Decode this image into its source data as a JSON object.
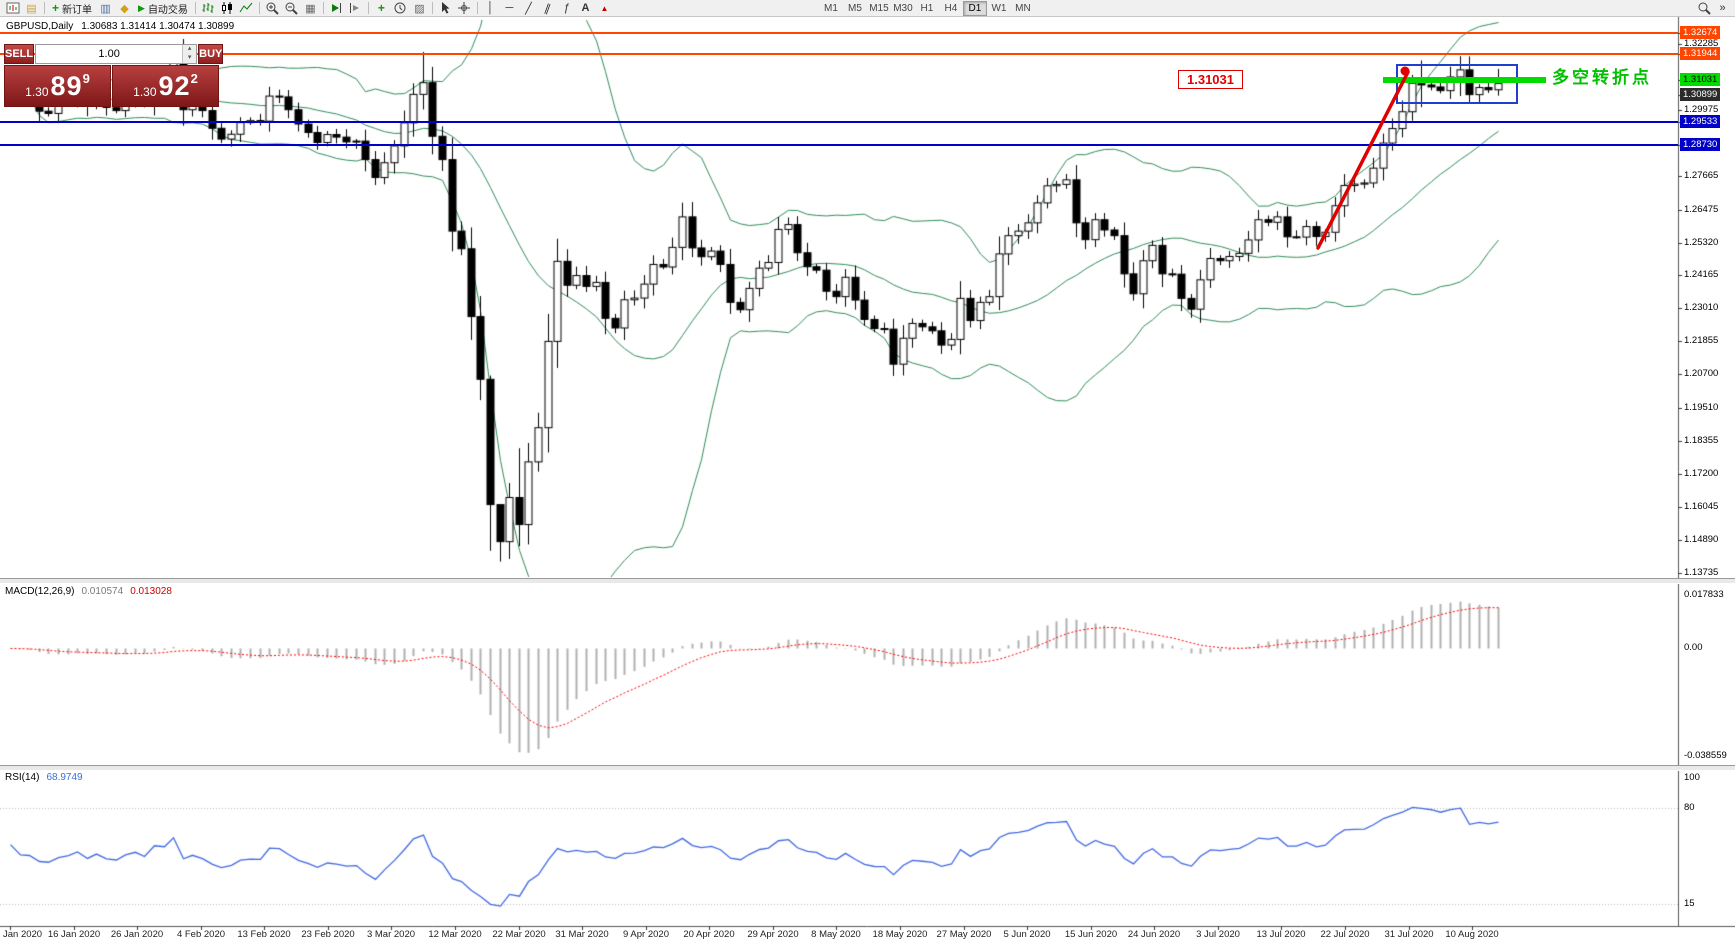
{
  "chart_title": {
    "symbol_period": "GBPUSD,Daily",
    "ohlc": "1.30683 1.31414 1.30474 1.30899"
  },
  "toolbar": {
    "new_order_label": "新订单",
    "autotrading_label": "自动交易",
    "timeframes": [
      "M1",
      "M5",
      "M15",
      "M30",
      "H1",
      "H4",
      "D1",
      "W1",
      "MN"
    ],
    "active_timeframe": "D1",
    "panels_glyph": "»"
  },
  "one_click": {
    "sell_label": "SELL",
    "buy_label": "BUY",
    "volume": "1.00",
    "sell_price_prefix": "1.30",
    "sell_price_big": "89",
    "sell_price_sup": "9",
    "buy_price_prefix": "1.30",
    "buy_price_big": "92",
    "buy_price_sup": "2"
  },
  "annotations": {
    "price_callout": "1.31031",
    "turning_point_label": "多空转折点"
  },
  "price_axis": {
    "plain": [
      "1.32285",
      "1.29975",
      "1.27665",
      "1.26475",
      "1.25320",
      "1.24165",
      "1.23010",
      "1.21855",
      "1.20700",
      "1.19510",
      "1.18355",
      "1.17200",
      "1.16045",
      "1.14890",
      "1.13735"
    ],
    "marked": [
      {
        "label": "1.32674",
        "type": "orange"
      },
      {
        "label": "1.31944",
        "type": "orange"
      },
      {
        "label": "1.31031",
        "type": "green"
      },
      {
        "label": "1.30899",
        "type": "bid"
      },
      {
        "label": "1.29533",
        "type": "blue"
      },
      {
        "label": "1.28730",
        "type": "blue"
      }
    ]
  },
  "macd": {
    "title": "MACD(12,26,9)",
    "main_value": "0.010574",
    "signal_value": "0.013028",
    "axis_labels": [
      "0.017833",
      "0.00",
      "-0.038559"
    ]
  },
  "rsi": {
    "title": "RSI(14)",
    "value": "68.9749",
    "axis_labels": [
      "100",
      "80",
      "15"
    ]
  },
  "date_axis": [
    "Jan 2020",
    "16 Jan 2020",
    "26 Jan 2020",
    "4 Feb 2020",
    "13 Feb 2020",
    "23 Feb 2020",
    "3 Mar 2020",
    "12 Mar 2020",
    "22 Mar 2020",
    "31 Mar 2020",
    "9 Apr 2020",
    "20 Apr 2020",
    "29 Apr 2020",
    "8 May 2020",
    "18 May 2020",
    "27 May 2020",
    "5 Jun 2020",
    "15 Jun 2020",
    "24 Jun 2020",
    "3 Jul 2020",
    "13 Jul 2020",
    "22 Jul 2020",
    "31 Jul 2020",
    "10 Aug 2020"
  ],
  "chart_data": {
    "type": "candlestick",
    "symbol": "GBPUSD",
    "period": "Daily",
    "visible_price_range": [
      1.1358,
      1.3313
    ],
    "closes": [
      1.3097,
      1.3065,
      1.3059,
      1.2993,
      1.2985,
      1.3023,
      1.304,
      1.3072,
      1.3013,
      1.3049,
      1.3006,
      1.2995,
      1.3033,
      1.3053,
      1.302,
      1.3105,
      1.3098,
      1.318,
      1.2998,
      1.303,
      1.2995,
      1.2933,
      1.2895,
      1.2912,
      1.2953,
      1.296,
      1.2958,
      1.3046,
      1.3043,
      1.2998,
      1.2948,
      1.2918,
      1.2883,
      1.2911,
      1.2902,
      1.2885,
      1.2888,
      1.2823,
      1.276,
      1.2812,
      1.2871,
      1.2952,
      1.3052,
      1.3093,
      1.2905,
      1.2823,
      1.2572,
      1.251,
      1.2272,
      1.2052,
      1.1612,
      1.1482,
      1.1637,
      1.1542,
      1.1762,
      1.1882,
      1.2185,
      1.2466,
      1.2382,
      1.2416,
      1.2378,
      1.2392,
      1.2266,
      1.2232,
      1.2331,
      1.2337,
      1.2386,
      1.2455,
      1.2446,
      1.2515,
      1.2622,
      1.2513,
      1.2482,
      1.2502,
      1.2455,
      1.2322,
      1.2296,
      1.2371,
      1.2442,
      1.2462,
      1.2578,
      1.2595,
      1.2496,
      1.2447,
      1.2435,
      1.2361,
      1.2342,
      1.241,
      1.233,
      1.2262,
      1.223,
      1.2228,
      1.2105,
      1.2196,
      1.2248,
      1.2236,
      1.2222,
      1.2172,
      1.2192,
      1.2336,
      1.2258,
      1.2322,
      1.2342,
      1.2492,
      1.2556,
      1.2572,
      1.2601,
      1.2671,
      1.2731,
      1.2736,
      1.2752,
      1.2601,
      1.2542,
      1.2612,
      1.2576,
      1.2556,
      1.2422,
      1.2352,
      1.2468,
      1.2522,
      1.2422,
      1.2421,
      1.2336,
      1.2298,
      1.2401,
      1.2476,
      1.2468,
      1.2483,
      1.2494,
      1.2541,
      1.2612,
      1.2603,
      1.2622,
      1.2552,
      1.2551,
      1.2588,
      1.2553,
      1.2568,
      1.2661,
      1.2732,
      1.2737,
      1.2741,
      1.2793,
      1.2881,
      1.2932,
      1.2991,
      1.3091,
      1.3085,
      1.3078,
      1.3065,
      1.3113,
      1.3138,
      1.3051,
      1.3076,
      1.3068,
      1.309
    ],
    "wick_overrides": {
      "43": [
        1.3201,
        1.2999
      ],
      "50": [
        1.2065,
        1.145
      ],
      "51": [
        1.1588,
        1.1412
      ],
      "53": [
        1.181,
        1.1466
      ],
      "147": [
        1.3171,
        1.3007
      ],
      "151": [
        1.3186,
        1.3046
      ],
      "155": [
        1.31414,
        1.30474
      ]
    },
    "overlays": {
      "bollinger_bands": {
        "period": 20,
        "deviation": 2
      },
      "horizontal_lines": [
        {
          "price": 1.32674,
          "color": "orange"
        },
        {
          "price": 1.31944,
          "color": "orange"
        },
        {
          "price": 1.29533,
          "color": "blue"
        },
        {
          "price": 1.2873,
          "color": "blue"
        }
      ],
      "green_zone_price": 1.31031
    },
    "macd": {
      "fast": 12,
      "slow": 26,
      "signal": 9,
      "last_main": 0.010574,
      "last_signal": 0.013028
    },
    "rsi": {
      "period": 14,
      "last_value": 68.9749
    }
  },
  "colors": {
    "bull_candle": "#ffffff",
    "bear_candle": "#000000",
    "bands": "#2e8b57",
    "orange": "#ff4500",
    "blue": "#0000c8",
    "green_line": "#00dc00",
    "annotation_red": "#e00000",
    "macd_histogram": "#b0b0b0",
    "macd_signal": "#ff0000",
    "rsi_line": "#4169e1",
    "panel_red": "#b03030"
  }
}
